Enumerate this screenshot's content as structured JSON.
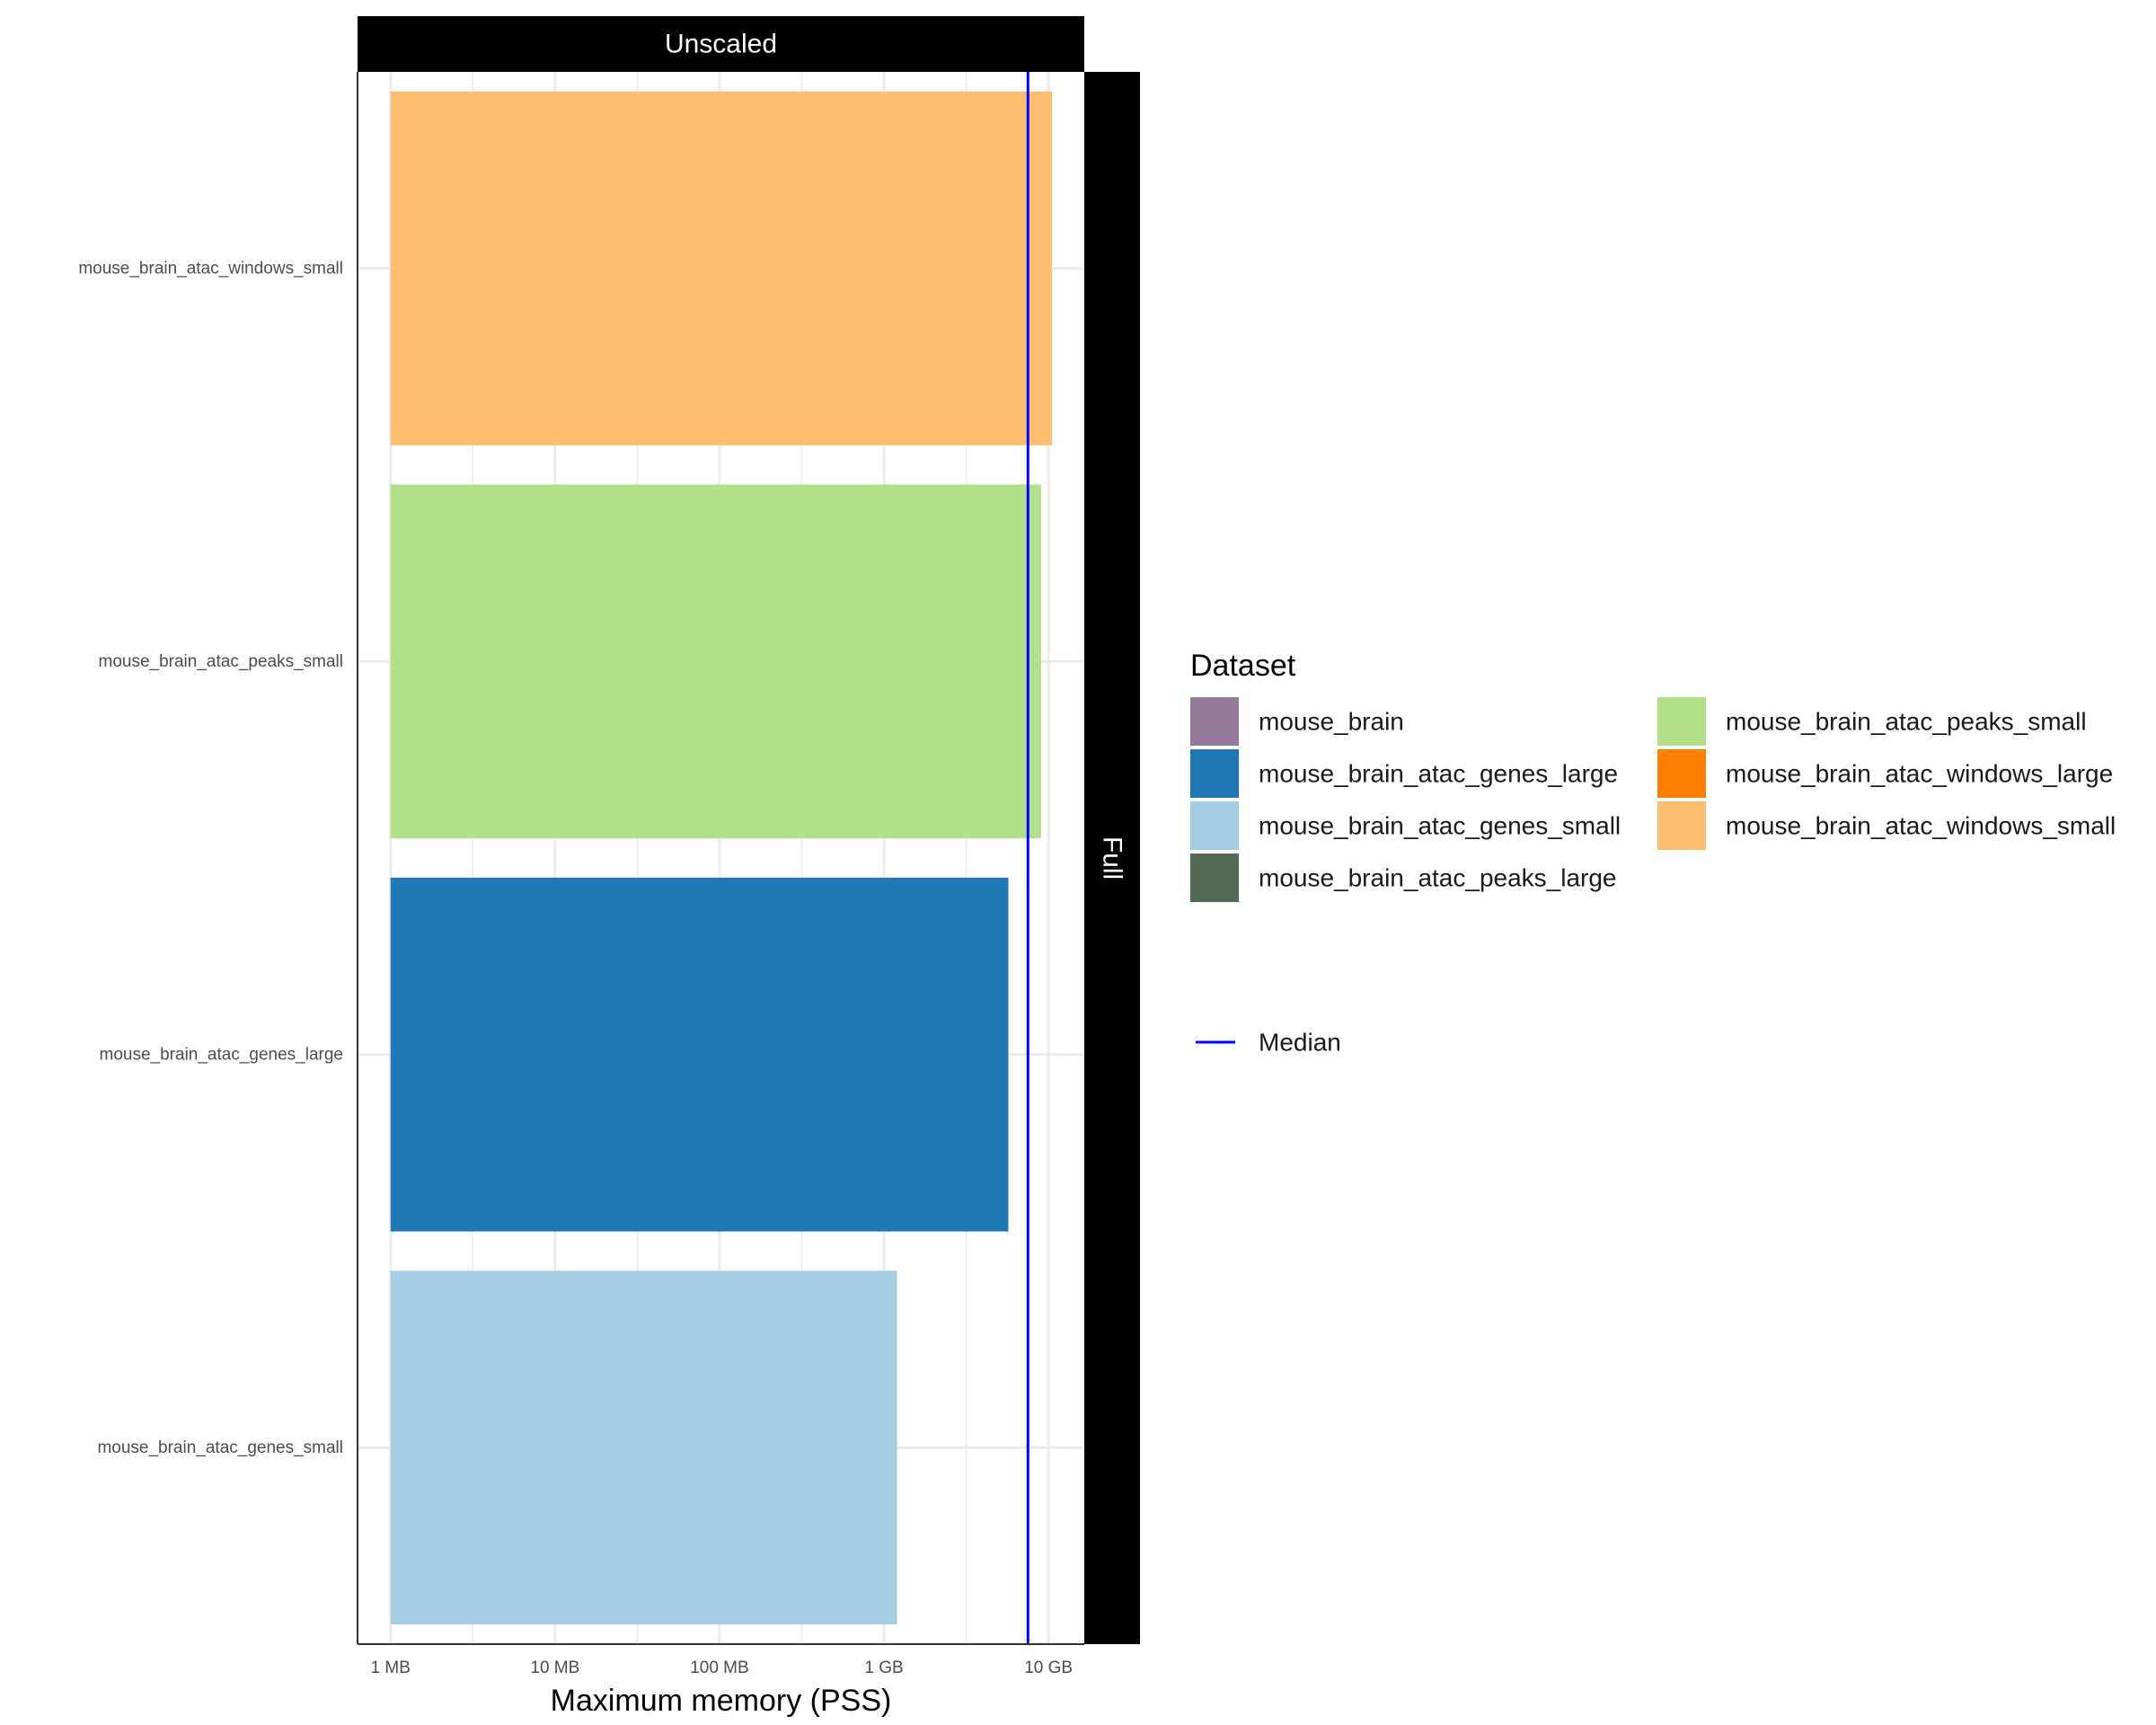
{
  "chart_data": {
    "type": "bar",
    "orientation": "horizontal",
    "facet_top": "Unscaled",
    "facet_right": "Full",
    "xlabel": "Maximum memory (PSS)",
    "x_scale": "log10",
    "x_ticks": [
      {
        "value": 1,
        "label": "1 MB"
      },
      {
        "value": 10,
        "label": "10 MB"
      },
      {
        "value": 100,
        "label": "100 MB"
      },
      {
        "value": 1000,
        "label": "1 GB"
      },
      {
        "value": 10000,
        "label": "10 GB"
      }
    ],
    "xlim_mb": [
      0.63,
      16500
    ],
    "categories": [
      "mouse_brain_atac_windows_small",
      "mouse_brain_atac_peaks_small",
      "mouse_brain_atac_genes_large",
      "mouse_brain_atac_genes_small"
    ],
    "values_mb": [
      10500,
      9000,
      5700,
      1200
    ],
    "bar_colors": [
      "#FDBF6F",
      "#B2DF8A",
      "#1F78B4",
      "#A6CEE3"
    ],
    "median_mb": 7500,
    "median_color": "#0000FF",
    "grid": true,
    "legend": {
      "title": "Dataset",
      "position": "right",
      "entries": [
        {
          "label": "mouse_brain",
          "color": "#967A9C"
        },
        {
          "label": "mouse_brain_atac_genes_large",
          "color": "#1F78B4"
        },
        {
          "label": "mouse_brain_atac_genes_small",
          "color": "#A6CEE3"
        },
        {
          "label": "mouse_brain_atac_peaks_large",
          "color": "#536A56"
        },
        {
          "label": "mouse_brain_atac_peaks_small",
          "color": "#B2DF8A"
        },
        {
          "label": "mouse_brain_atac_windows_large",
          "color": "#FF7F00"
        },
        {
          "label": "mouse_brain_atac_windows_small",
          "color": "#FDBF6F"
        }
      ],
      "line_entry": {
        "label": "Median",
        "color": "#0000FF"
      }
    }
  }
}
